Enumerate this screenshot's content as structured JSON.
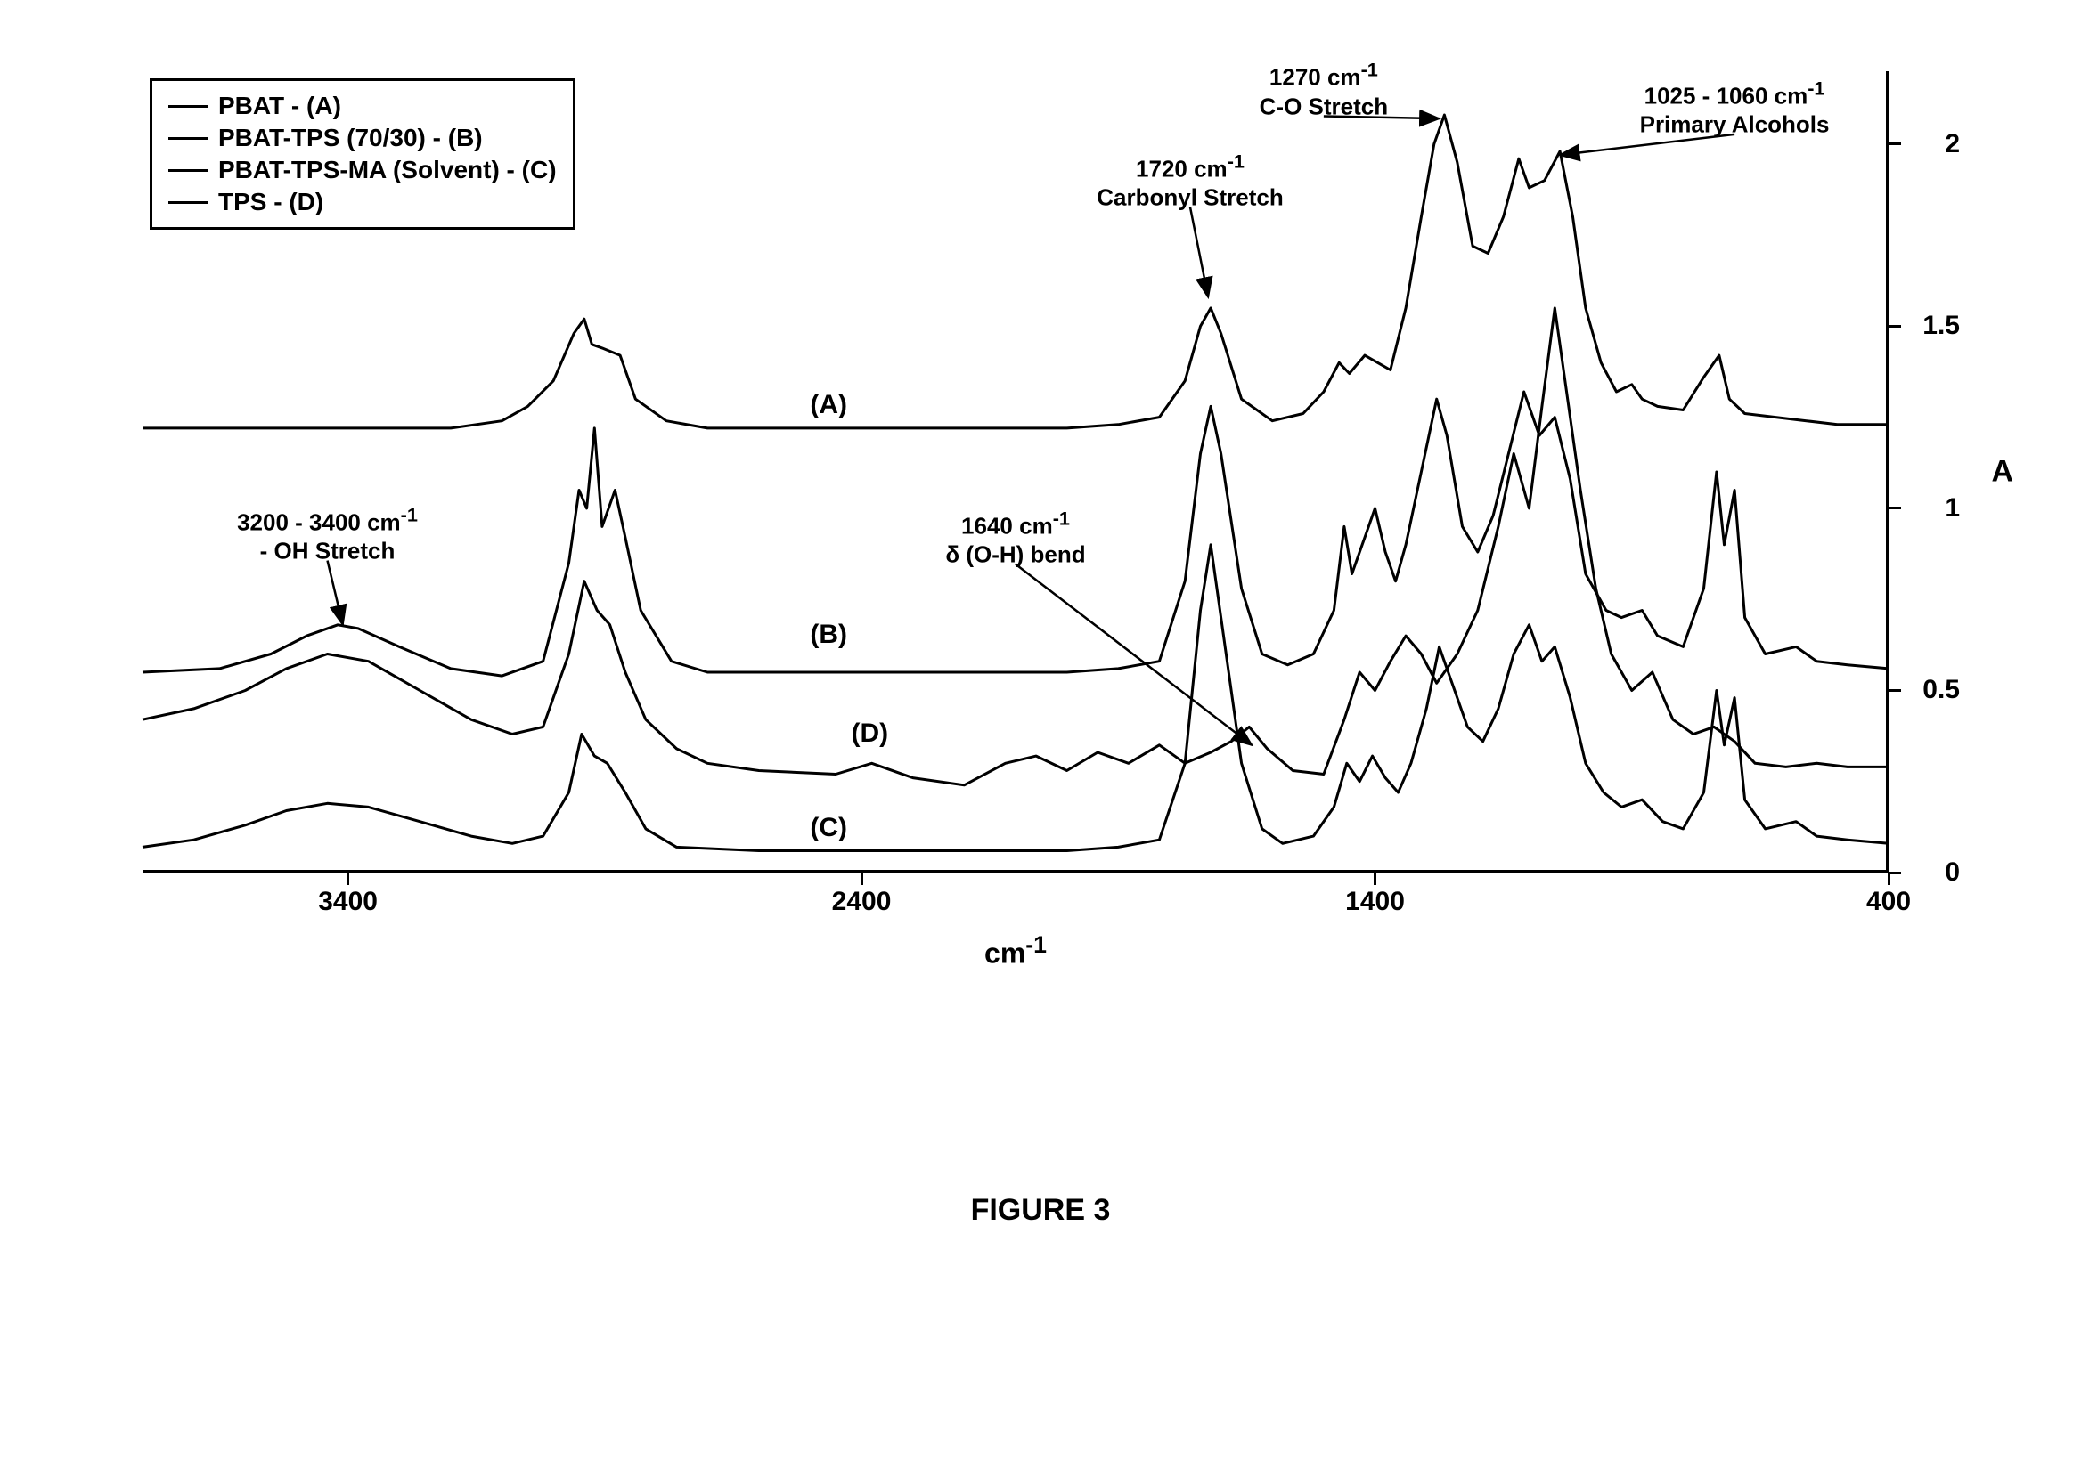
{
  "figure_caption": "FIGURE 3",
  "chart": {
    "type": "line",
    "x_axis": {
      "title_html": "cm<sup>-1</sup>",
      "min": 400,
      "max": 3800,
      "reversed": true,
      "ticks": [
        3400,
        2400,
        1400,
        400
      ],
      "tick_fontsize": 30,
      "title_fontsize": 32
    },
    "y_axis": {
      "title": "A",
      "min": 0,
      "max": 2.2,
      "side": "right",
      "ticks": [
        0,
        0.5,
        1,
        1.5,
        2
      ],
      "tick_fontsize": 30,
      "title_fontsize": 34
    },
    "line_color": "#000000",
    "line_width": 3,
    "background_color": "#ffffff",
    "legend": {
      "items": [
        {
          "label": "PBAT - (A)"
        },
        {
          "label": "PBAT-TPS (70/30) -  (B)"
        },
        {
          "label": "PBAT-TPS-MA (Solvent) - (C)"
        },
        {
          "label": "TPS - (D)"
        }
      ],
      "fontsize": 28,
      "border_color": "#000000",
      "border_width": 3
    },
    "trace_labels": [
      {
        "text": "(A)",
        "x_wn": 2500,
        "y_A": 1.28
      },
      {
        "text": "(B)",
        "x_wn": 2500,
        "y_A": 0.65
      },
      {
        "text": "(D)",
        "x_wn": 2420,
        "y_A": 0.38
      },
      {
        "text": "(C)",
        "x_wn": 2500,
        "y_A": 0.12
      }
    ],
    "annotations": [
      {
        "id": "oh-stretch",
        "lines": [
          "3200 - 3400 cm⁻¹",
          "- OH Stretch"
        ],
        "text_x_wn": 3440,
        "text_y_A": 0.93,
        "arrow_to_x_wn": 3410,
        "arrow_to_y_A": 0.68
      },
      {
        "id": "carbonyl",
        "lines": [
          "1720 cm⁻¹",
          "Carbonyl Stretch"
        ],
        "text_x_wn": 1760,
        "text_y_A": 1.9,
        "arrow_to_x_wn": 1725,
        "arrow_to_y_A": 1.58
      },
      {
        "id": "co-stretch",
        "lines": [
          "1270 cm⁻¹",
          "C-O Stretch"
        ],
        "text_x_wn": 1500,
        "text_y_A": 2.15,
        "arrow_to_x_wn": 1275,
        "arrow_to_y_A": 2.07
      },
      {
        "id": "primary-alcohols",
        "lines": [
          "1025 - 1060 cm⁻¹",
          "Primary Alcohols"
        ],
        "text_x_wn": 700,
        "text_y_A": 2.1,
        "arrow_to_x_wn": 1040,
        "arrow_to_y_A": 1.97
      },
      {
        "id": "oh-bend",
        "lines": [
          "1640 cm⁻¹",
          "δ (O-H) bend"
        ],
        "text_x_wn": 2100,
        "text_y_A": 0.92,
        "arrow_to_x_wn": 1640,
        "arrow_to_y_A": 0.35
      }
    ],
    "series": [
      {
        "name": "A",
        "points": [
          [
            3800,
            1.22
          ],
          [
            3600,
            1.22
          ],
          [
            3400,
            1.22
          ],
          [
            3200,
            1.22
          ],
          [
            3100,
            1.24
          ],
          [
            3050,
            1.28
          ],
          [
            3000,
            1.35
          ],
          [
            2960,
            1.48
          ],
          [
            2940,
            1.52
          ],
          [
            2925,
            1.45
          ],
          [
            2905,
            1.44
          ],
          [
            2870,
            1.42
          ],
          [
            2840,
            1.3
          ],
          [
            2780,
            1.24
          ],
          [
            2700,
            1.22
          ],
          [
            2400,
            1.22
          ],
          [
            2200,
            1.22
          ],
          [
            2000,
            1.22
          ],
          [
            1900,
            1.23
          ],
          [
            1820,
            1.25
          ],
          [
            1770,
            1.35
          ],
          [
            1740,
            1.5
          ],
          [
            1720,
            1.55
          ],
          [
            1700,
            1.48
          ],
          [
            1660,
            1.3
          ],
          [
            1600,
            1.24
          ],
          [
            1540,
            1.26
          ],
          [
            1500,
            1.32
          ],
          [
            1470,
            1.4
          ],
          [
            1450,
            1.37
          ],
          [
            1420,
            1.42
          ],
          [
            1395,
            1.4
          ],
          [
            1370,
            1.38
          ],
          [
            1340,
            1.55
          ],
          [
            1310,
            1.8
          ],
          [
            1285,
            2.0
          ],
          [
            1265,
            2.08
          ],
          [
            1240,
            1.95
          ],
          [
            1210,
            1.72
          ],
          [
            1180,
            1.7
          ],
          [
            1150,
            1.8
          ],
          [
            1120,
            1.96
          ],
          [
            1100,
            1.88
          ],
          [
            1070,
            1.9
          ],
          [
            1040,
            1.98
          ],
          [
            1015,
            1.8
          ],
          [
            990,
            1.55
          ],
          [
            960,
            1.4
          ],
          [
            930,
            1.32
          ],
          [
            900,
            1.34
          ],
          [
            880,
            1.3
          ],
          [
            850,
            1.28
          ],
          [
            800,
            1.27
          ],
          [
            760,
            1.36
          ],
          [
            730,
            1.42
          ],
          [
            710,
            1.3
          ],
          [
            680,
            1.26
          ],
          [
            620,
            1.25
          ],
          [
            560,
            1.24
          ],
          [
            500,
            1.23
          ],
          [
            400,
            1.23
          ]
        ]
      },
      {
        "name": "B",
        "points": [
          [
            3800,
            0.55
          ],
          [
            3650,
            0.56
          ],
          [
            3550,
            0.6
          ],
          [
            3480,
            0.65
          ],
          [
            3420,
            0.68
          ],
          [
            3380,
            0.67
          ],
          [
            3300,
            0.62
          ],
          [
            3200,
            0.56
          ],
          [
            3100,
            0.54
          ],
          [
            3020,
            0.58
          ],
          [
            2970,
            0.85
          ],
          [
            2950,
            1.05
          ],
          [
            2935,
            1.0
          ],
          [
            2920,
            1.22
          ],
          [
            2905,
            0.95
          ],
          [
            2880,
            1.05
          ],
          [
            2860,
            0.92
          ],
          [
            2830,
            0.72
          ],
          [
            2770,
            0.58
          ],
          [
            2700,
            0.55
          ],
          [
            2400,
            0.55
          ],
          [
            2200,
            0.55
          ],
          [
            2000,
            0.55
          ],
          [
            1900,
            0.56
          ],
          [
            1820,
            0.58
          ],
          [
            1770,
            0.8
          ],
          [
            1740,
            1.15
          ],
          [
            1720,
            1.28
          ],
          [
            1700,
            1.15
          ],
          [
            1660,
            0.78
          ],
          [
            1620,
            0.6
          ],
          [
            1570,
            0.57
          ],
          [
            1520,
            0.6
          ],
          [
            1480,
            0.72
          ],
          [
            1460,
            0.95
          ],
          [
            1445,
            0.82
          ],
          [
            1420,
            0.92
          ],
          [
            1400,
            1.0
          ],
          [
            1380,
            0.88
          ],
          [
            1360,
            0.8
          ],
          [
            1340,
            0.9
          ],
          [
            1310,
            1.1
          ],
          [
            1280,
            1.3
          ],
          [
            1260,
            1.2
          ],
          [
            1230,
            0.95
          ],
          [
            1200,
            0.88
          ],
          [
            1170,
            0.98
          ],
          [
            1140,
            1.15
          ],
          [
            1110,
            1.32
          ],
          [
            1080,
            1.2
          ],
          [
            1050,
            1.25
          ],
          [
            1020,
            1.08
          ],
          [
            990,
            0.82
          ],
          [
            950,
            0.72
          ],
          [
            920,
            0.7
          ],
          [
            880,
            0.72
          ],
          [
            850,
            0.65
          ],
          [
            800,
            0.62
          ],
          [
            760,
            0.78
          ],
          [
            735,
            1.1
          ],
          [
            720,
            0.9
          ],
          [
            700,
            1.05
          ],
          [
            680,
            0.7
          ],
          [
            640,
            0.6
          ],
          [
            580,
            0.62
          ],
          [
            540,
            0.58
          ],
          [
            480,
            0.57
          ],
          [
            400,
            0.56
          ]
        ]
      },
      {
        "name": "D",
        "points": [
          [
            3800,
            0.42
          ],
          [
            3700,
            0.45
          ],
          [
            3600,
            0.5
          ],
          [
            3520,
            0.56
          ],
          [
            3440,
            0.6
          ],
          [
            3360,
            0.58
          ],
          [
            3260,
            0.5
          ],
          [
            3160,
            0.42
          ],
          [
            3080,
            0.38
          ],
          [
            3020,
            0.4
          ],
          [
            2970,
            0.6
          ],
          [
            2940,
            0.8
          ],
          [
            2915,
            0.72
          ],
          [
            2890,
            0.68
          ],
          [
            2860,
            0.55
          ],
          [
            2820,
            0.42
          ],
          [
            2760,
            0.34
          ],
          [
            2700,
            0.3
          ],
          [
            2600,
            0.28
          ],
          [
            2450,
            0.27
          ],
          [
            2380,
            0.3
          ],
          [
            2300,
            0.26
          ],
          [
            2200,
            0.24
          ],
          [
            2120,
            0.3
          ],
          [
            2060,
            0.32
          ],
          [
            2000,
            0.28
          ],
          [
            1940,
            0.33
          ],
          [
            1880,
            0.3
          ],
          [
            1820,
            0.35
          ],
          [
            1770,
            0.3
          ],
          [
            1720,
            0.33
          ],
          [
            1680,
            0.36
          ],
          [
            1645,
            0.4
          ],
          [
            1610,
            0.34
          ],
          [
            1560,
            0.28
          ],
          [
            1500,
            0.27
          ],
          [
            1460,
            0.42
          ],
          [
            1430,
            0.55
          ],
          [
            1400,
            0.5
          ],
          [
            1370,
            0.58
          ],
          [
            1340,
            0.65
          ],
          [
            1310,
            0.6
          ],
          [
            1280,
            0.52
          ],
          [
            1240,
            0.6
          ],
          [
            1200,
            0.72
          ],
          [
            1160,
            0.95
          ],
          [
            1130,
            1.15
          ],
          [
            1100,
            1.0
          ],
          [
            1075,
            1.28
          ],
          [
            1050,
            1.55
          ],
          [
            1025,
            1.3
          ],
          [
            1000,
            1.05
          ],
          [
            970,
            0.78
          ],
          [
            940,
            0.6
          ],
          [
            900,
            0.5
          ],
          [
            860,
            0.55
          ],
          [
            820,
            0.42
          ],
          [
            780,
            0.38
          ],
          [
            740,
            0.4
          ],
          [
            700,
            0.36
          ],
          [
            660,
            0.3
          ],
          [
            600,
            0.29
          ],
          [
            540,
            0.3
          ],
          [
            480,
            0.29
          ],
          [
            400,
            0.29
          ]
        ]
      },
      {
        "name": "C",
        "points": [
          [
            3800,
            0.07
          ],
          [
            3700,
            0.09
          ],
          [
            3600,
            0.13
          ],
          [
            3520,
            0.17
          ],
          [
            3440,
            0.19
          ],
          [
            3360,
            0.18
          ],
          [
            3260,
            0.14
          ],
          [
            3160,
            0.1
          ],
          [
            3080,
            0.08
          ],
          [
            3020,
            0.1
          ],
          [
            2970,
            0.22
          ],
          [
            2945,
            0.38
          ],
          [
            2920,
            0.32
          ],
          [
            2895,
            0.3
          ],
          [
            2860,
            0.22
          ],
          [
            2820,
            0.12
          ],
          [
            2760,
            0.07
          ],
          [
            2600,
            0.06
          ],
          [
            2400,
            0.06
          ],
          [
            2200,
            0.06
          ],
          [
            2000,
            0.06
          ],
          [
            1900,
            0.07
          ],
          [
            1820,
            0.09
          ],
          [
            1770,
            0.3
          ],
          [
            1740,
            0.72
          ],
          [
            1720,
            0.9
          ],
          [
            1700,
            0.7
          ],
          [
            1660,
            0.3
          ],
          [
            1620,
            0.12
          ],
          [
            1580,
            0.08
          ],
          [
            1520,
            0.1
          ],
          [
            1480,
            0.18
          ],
          [
            1455,
            0.3
          ],
          [
            1430,
            0.25
          ],
          [
            1405,
            0.32
          ],
          [
            1380,
            0.26
          ],
          [
            1355,
            0.22
          ],
          [
            1330,
            0.3
          ],
          [
            1300,
            0.45
          ],
          [
            1275,
            0.62
          ],
          [
            1250,
            0.52
          ],
          [
            1220,
            0.4
          ],
          [
            1190,
            0.36
          ],
          [
            1160,
            0.45
          ],
          [
            1130,
            0.6
          ],
          [
            1100,
            0.68
          ],
          [
            1075,
            0.58
          ],
          [
            1050,
            0.62
          ],
          [
            1020,
            0.48
          ],
          [
            990,
            0.3
          ],
          [
            955,
            0.22
          ],
          [
            920,
            0.18
          ],
          [
            880,
            0.2
          ],
          [
            840,
            0.14
          ],
          [
            800,
            0.12
          ],
          [
            760,
            0.22
          ],
          [
            735,
            0.5
          ],
          [
            720,
            0.35
          ],
          [
            700,
            0.48
          ],
          [
            680,
            0.2
          ],
          [
            640,
            0.12
          ],
          [
            580,
            0.14
          ],
          [
            540,
            0.1
          ],
          [
            480,
            0.09
          ],
          [
            400,
            0.08
          ]
        ]
      }
    ]
  }
}
